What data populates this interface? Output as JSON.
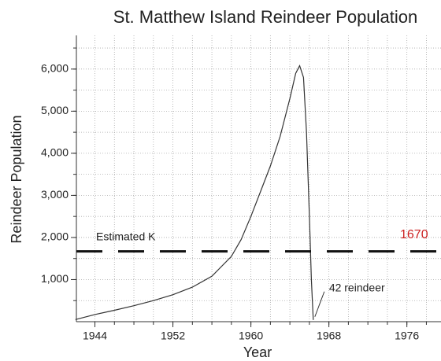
{
  "chart_data": {
    "type": "line",
    "title": "St. Matthew Island Reindeer Population",
    "x_label": "Year",
    "y_label": "Reindeer Population",
    "x": [
      1942,
      1944,
      1946,
      1948,
      1950,
      1952,
      1954,
      1956,
      1958,
      1959,
      1960,
      1961,
      1962,
      1963,
      1964,
      1964.6,
      1965,
      1965.4,
      1965.7,
      1966,
      1966.2,
      1966.4
    ],
    "series": [
      {
        "name": "Reindeer population",
        "color": "#333333",
        "values": [
          50,
          170,
          270,
          380,
          500,
          640,
          820,
          1080,
          1550,
          1950,
          2500,
          3100,
          3700,
          4400,
          5300,
          5900,
          6080,
          5800,
          4500,
          2500,
          1000,
          42
        ]
      }
    ],
    "reference_line": {
      "label": "Estimated K",
      "value": 1670,
      "value_label": "1670",
      "color": "#111111",
      "label_color": "#cc2222"
    },
    "annotation": {
      "text": "42 reindeer",
      "x": 1966.4,
      "value": 42
    },
    "xlim": [
      1942.1,
      1979.5
    ],
    "ylim": [
      0,
      6800
    ],
    "xticks": [
      1944,
      1952,
      1960,
      1968,
      1976
    ],
    "yticks": [
      {
        "value": 1000,
        "label": "1,000"
      },
      {
        "value": 2000,
        "label": "2,000"
      },
      {
        "value": 3000,
        "label": "3,000"
      },
      {
        "value": 4000,
        "label": "4,000"
      },
      {
        "value": 5000,
        "label": "5,000"
      },
      {
        "value": 6000,
        "label": "6,000"
      }
    ],
    "xminorticks": [
      1944,
      1946,
      1948,
      1950,
      1952,
      1954,
      1956,
      1958,
      1960,
      1962,
      1964,
      1966,
      1968,
      1970,
      1972,
      1974,
      1976,
      1978
    ],
    "yminorticks": [
      500,
      1000,
      1500,
      2000,
      2500,
      3000,
      3500,
      4000,
      4500,
      5000,
      5500,
      6000,
      6500
    ],
    "grid": true
  }
}
